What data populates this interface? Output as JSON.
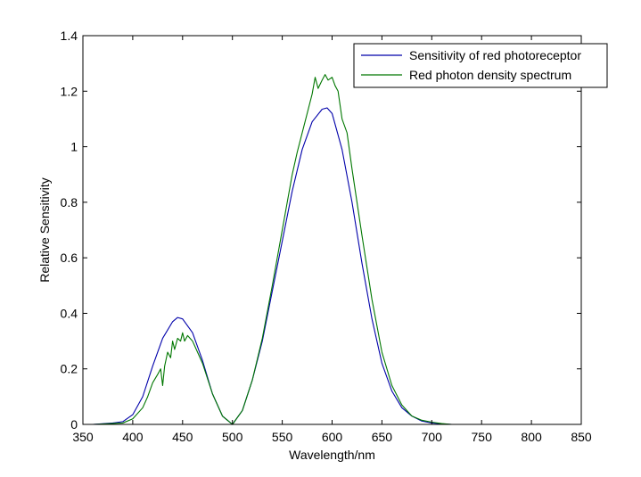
{
  "chart_data": {
    "type": "line",
    "xlabel": "Wavelength/nm",
    "ylabel": "Relative Sensitivity",
    "xlim": [
      350,
      850
    ],
    "ylim": [
      0,
      1.4
    ],
    "xticks": [
      "350",
      "400",
      "450",
      "500",
      "550",
      "600",
      "650",
      "700",
      "750",
      "800",
      "850"
    ],
    "yticks": [
      "0",
      "0.2",
      "0.4",
      "0.6",
      "0.8",
      "1",
      "1.2",
      "1.4"
    ],
    "grid": false,
    "legend": "top-right",
    "series": [
      {
        "name": "Sensitivity of red photoreceptor",
        "color": "#0000aa",
        "x": [
          360,
          380,
          390,
          400,
          410,
          420,
          430,
          440,
          445,
          450,
          460,
          470,
          480,
          490,
          500,
          510,
          520,
          530,
          540,
          550,
          560,
          570,
          580,
          590,
          595,
          600,
          610,
          620,
          630,
          640,
          650,
          660,
          670,
          680,
          690,
          700,
          710,
          720,
          740,
          760,
          780,
          800,
          830
        ],
        "values": [
          0,
          0.005,
          0.01,
          0.035,
          0.1,
          0.21,
          0.31,
          0.37,
          0.385,
          0.38,
          0.33,
          0.23,
          0.11,
          0.03,
          0,
          0.05,
          0.16,
          0.3,
          0.48,
          0.66,
          0.84,
          0.99,
          1.09,
          1.135,
          1.14,
          1.12,
          0.99,
          0.8,
          0.58,
          0.38,
          0.22,
          0.12,
          0.06,
          0.03,
          0.012,
          0.005,
          0.002,
          0,
          0,
          0,
          0,
          0,
          0
        ]
      },
      {
        "name": "Red photon density spectrum",
        "color": "#007700",
        "x": [
          360,
          390,
          400,
          410,
          415,
          420,
          425,
          428,
          430,
          432,
          435,
          438,
          440,
          442,
          445,
          448,
          450,
          452,
          455,
          460,
          465,
          470,
          480,
          490,
          500,
          510,
          520,
          530,
          540,
          550,
          560,
          565,
          570,
          575,
          580,
          583,
          586,
          590,
          593,
          596,
          600,
          603,
          606,
          610,
          615,
          620,
          630,
          640,
          650,
          660,
          670,
          680,
          690,
          700,
          710,
          720,
          760,
          800,
          830
        ],
        "values": [
          0,
          0.005,
          0.02,
          0.06,
          0.1,
          0.15,
          0.18,
          0.2,
          0.14,
          0.21,
          0.26,
          0.24,
          0.3,
          0.27,
          0.31,
          0.3,
          0.33,
          0.3,
          0.32,
          0.3,
          0.26,
          0.22,
          0.11,
          0.03,
          0,
          0.05,
          0.16,
          0.31,
          0.5,
          0.7,
          0.9,
          0.98,
          1.05,
          1.12,
          1.19,
          1.25,
          1.21,
          1.24,
          1.26,
          1.24,
          1.25,
          1.22,
          1.2,
          1.1,
          1.05,
          0.92,
          0.68,
          0.45,
          0.26,
          0.14,
          0.07,
          0.03,
          0.015,
          0.008,
          0.003,
          0,
          0,
          0,
          0
        ]
      }
    ]
  }
}
